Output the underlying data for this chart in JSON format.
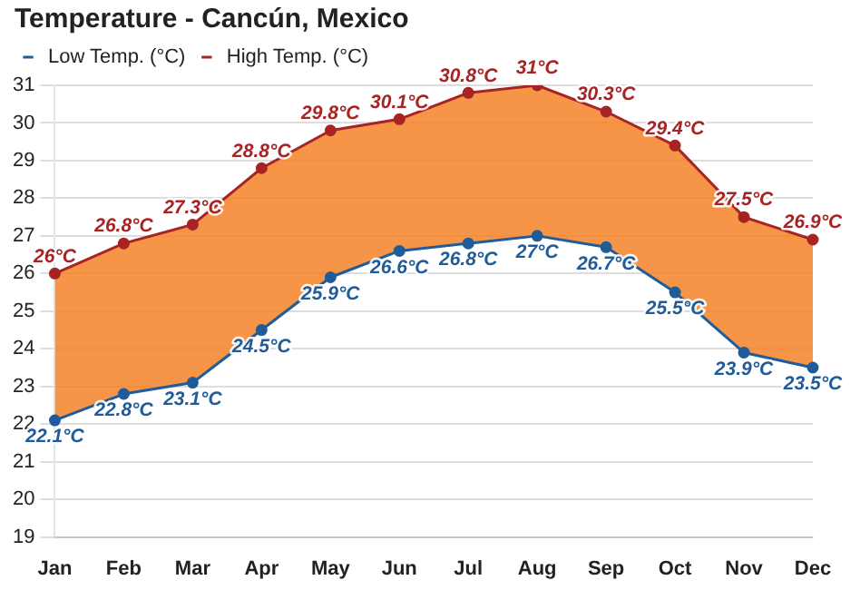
{
  "chart_data": {
    "type": "line",
    "title": "Temperature - Cancún, Mexico",
    "categories": [
      "Jan",
      "Feb",
      "Mar",
      "Apr",
      "May",
      "Jun",
      "Jul",
      "Aug",
      "Sep",
      "Oct",
      "Nov",
      "Dec"
    ],
    "series": [
      {
        "name": "Low Temp. (°C)",
        "color": "#1f5c99",
        "values": [
          22.1,
          22.8,
          23.1,
          24.5,
          25.9,
          26.6,
          26.8,
          27,
          26.7,
          25.5,
          23.9,
          23.5
        ],
        "value_labels": [
          "22.1°C",
          "22.8°C",
          "23.1°C",
          "24.5°C",
          "25.9°C",
          "26.6°C",
          "26.8°C",
          "27°C",
          "26.7°C",
          "25.5°C",
          "23.9°C",
          "23.5°C"
        ]
      },
      {
        "name": "High Temp. (°C)",
        "color": "#a82424",
        "values": [
          26,
          26.8,
          27.3,
          28.8,
          29.8,
          30.1,
          30.8,
          31,
          30.3,
          29.4,
          27.5,
          26.9
        ],
        "value_labels": [
          "26°C",
          "26.8°C",
          "27.3°C",
          "28.8°C",
          "29.8°C",
          "30.1°C",
          "30.8°C",
          "31°C",
          "30.3°C",
          "29.4°C",
          "27.5°C",
          "26.9°C"
        ]
      }
    ],
    "ylim": [
      19,
      31
    ],
    "yticks": [
      19,
      20,
      21,
      22,
      23,
      24,
      25,
      26,
      27,
      28,
      29,
      30,
      31
    ],
    "grid": "y",
    "legend": "top left",
    "marker": "circle",
    "line_style": "solid"
  }
}
